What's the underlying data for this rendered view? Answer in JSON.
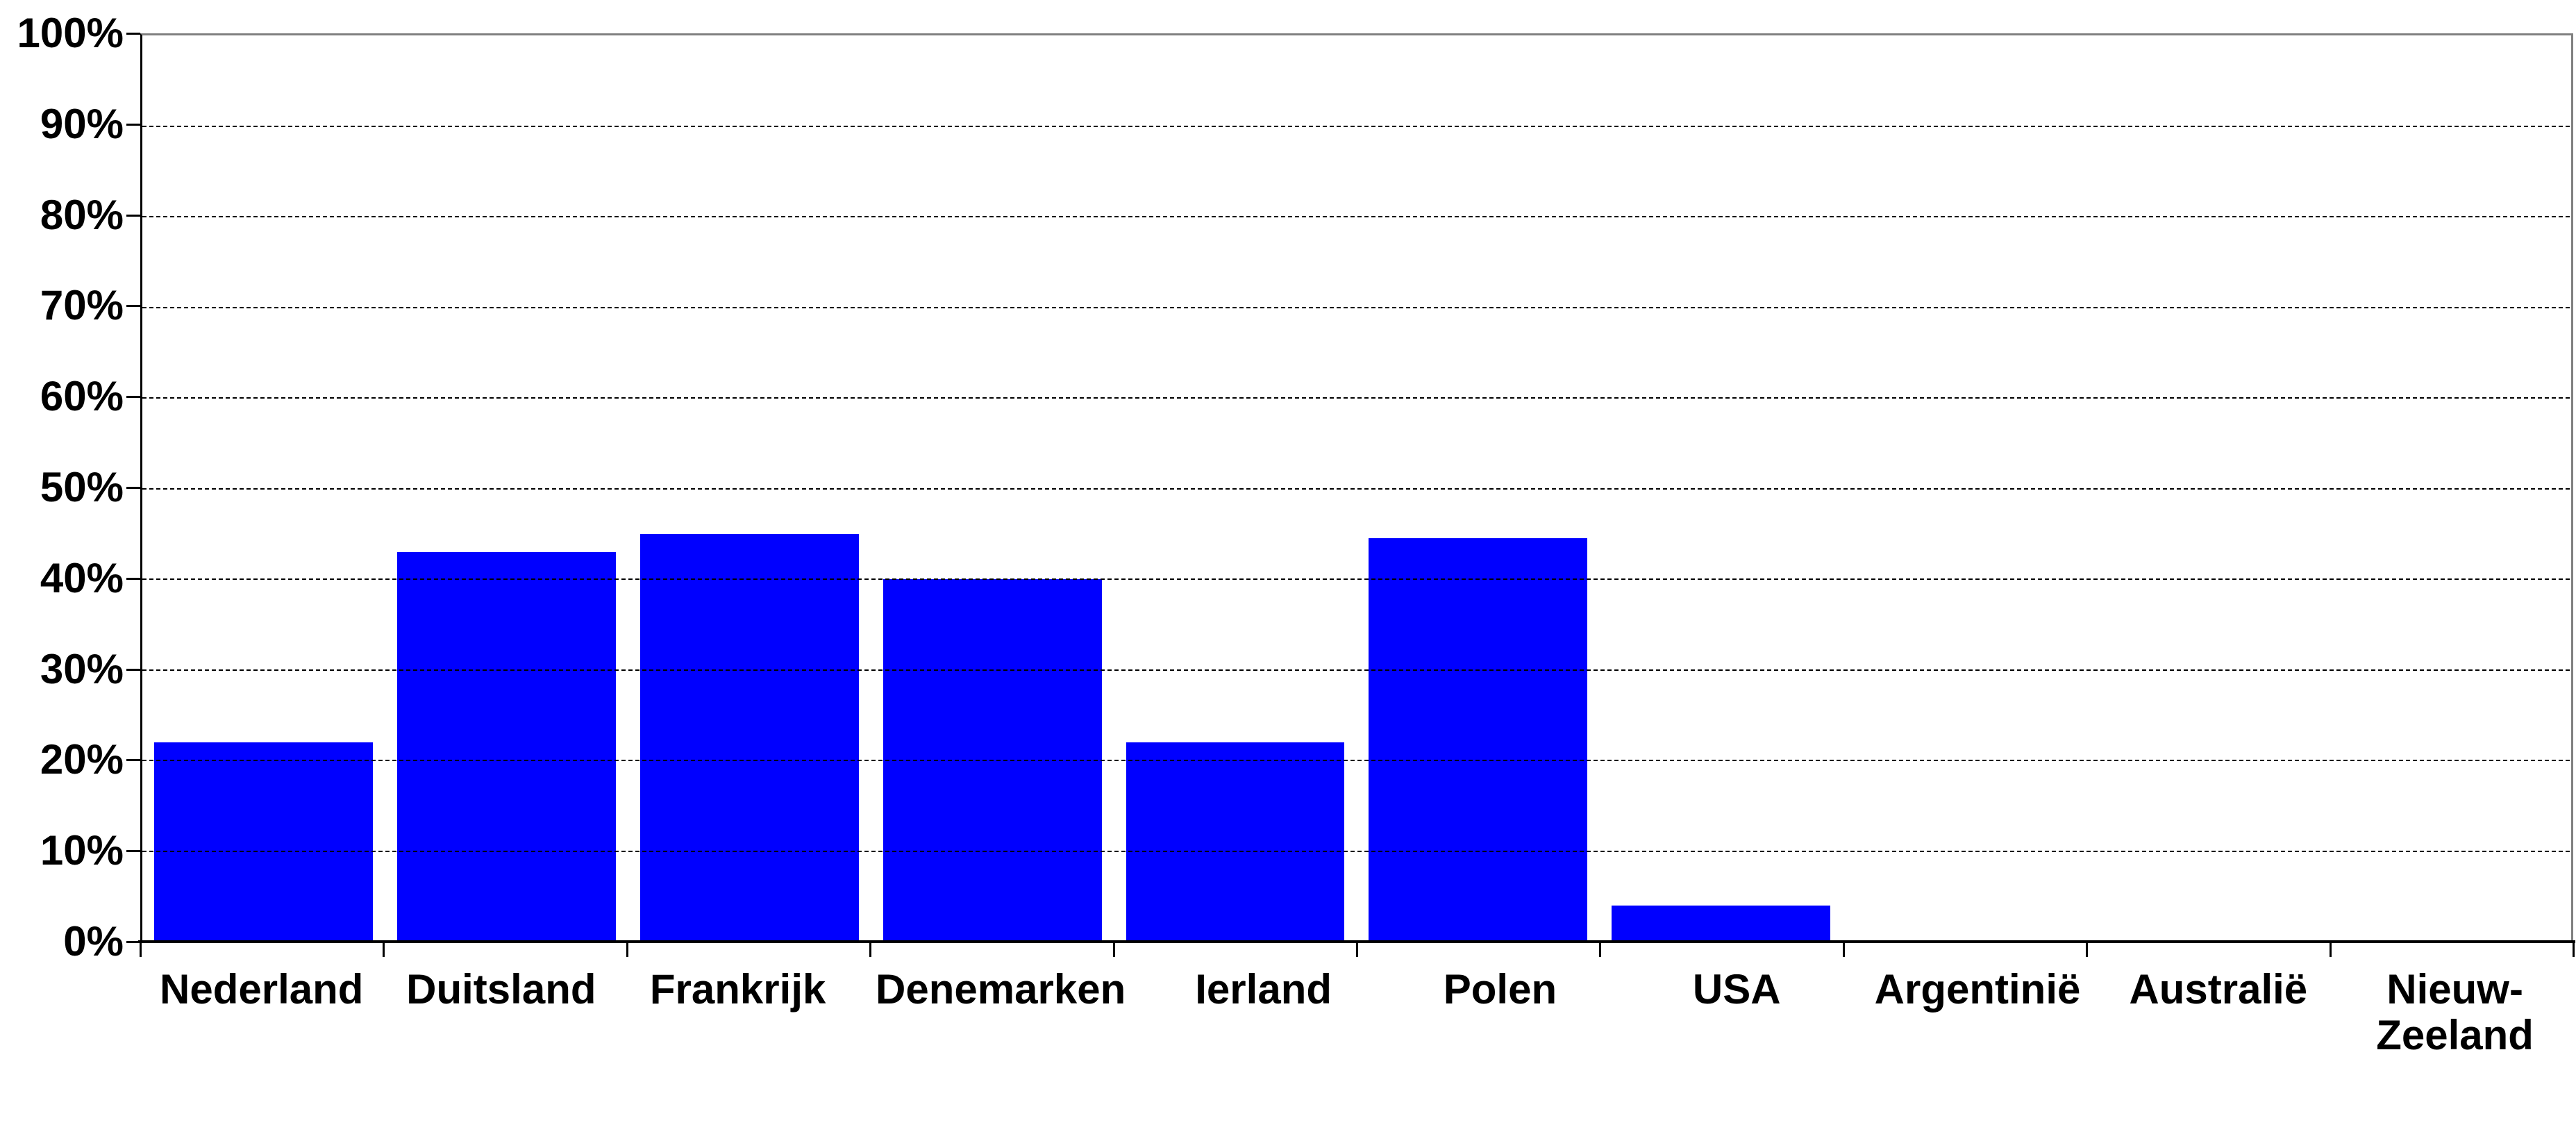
{
  "chart_data": {
    "type": "bar",
    "title": "",
    "categories": [
      "Nederland",
      "Duitsland",
      "Frankrijk",
      "Denemarken",
      "Ierland",
      "Polen",
      "USA",
      "Argentinië",
      "Australië",
      "Nieuw-Zeeland"
    ],
    "values": [
      22,
      43,
      45,
      40,
      22,
      44.5,
      4,
      0,
      0,
      0
    ],
    "value_unit": "%",
    "xlabel": "",
    "ylabel": "",
    "ylim": [
      0,
      100
    ],
    "y_ticks": [
      "0%",
      "10%",
      "20%",
      "30%",
      "40%",
      "50%",
      "60%",
      "70%",
      "80%",
      "90%",
      "100%"
    ],
    "y_tick_step": 10,
    "grid": "horizontal dashed black lines at 10%-90%",
    "legend": "none",
    "bar_color": "#0000ff",
    "axis_color": "#000000",
    "plot_border_color": "#808080",
    "background_color": "#ffffff",
    "text_color": "#000000"
  }
}
